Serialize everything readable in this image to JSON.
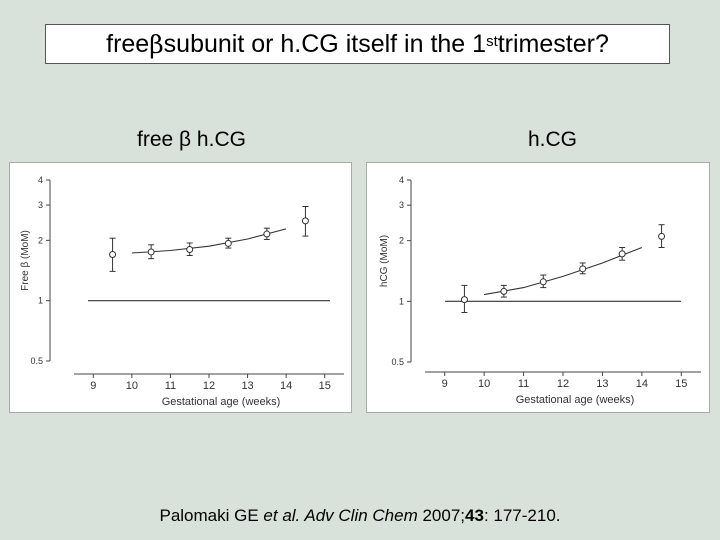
{
  "slide": {
    "title_prefix": "free ",
    "title_beta": "β",
    "title_middle": " subunit or h.CG itself in the 1",
    "title_sup": "st",
    "title_suffix": " trimester?",
    "citation": {
      "authors": "Palomaki GE ",
      "etal": "et al.",
      "journal": " Adv Clin Chem",
      "year": " 2007;",
      "volume": "43",
      "pages": ": 177-210."
    }
  },
  "chart_data": [
    {
      "type": "line",
      "panel_label": "free β h.CG",
      "xlabel": "Gestational age (weeks)",
      "ylabel": "Free β (MoM)",
      "xlim": [
        8.5,
        15.5
      ],
      "ylim": [
        0.5,
        4
      ],
      "y_scale": "log",
      "x_ticks": [
        9,
        10,
        11,
        12,
        13,
        14,
        15
      ],
      "y_ticks": [
        0.5,
        1,
        2,
        3,
        4
      ],
      "reference_line": 1,
      "points": [
        {
          "x": 9.5,
          "y": 1.7,
          "low": 1.4,
          "high": 2.05
        },
        {
          "x": 10.5,
          "y": 1.75,
          "low": 1.62,
          "high": 1.9
        },
        {
          "x": 11.5,
          "y": 1.8,
          "low": 1.68,
          "high": 1.94
        },
        {
          "x": 12.5,
          "y": 1.93,
          "low": 1.83,
          "high": 2.05
        },
        {
          "x": 13.5,
          "y": 2.15,
          "low": 2.02,
          "high": 2.3
        },
        {
          "x": 14.5,
          "y": 2.5,
          "low": 2.1,
          "high": 2.95
        }
      ],
      "trend": [
        [
          10,
          1.73
        ],
        [
          11,
          1.78
        ],
        [
          12,
          1.87
        ],
        [
          13,
          2.03
        ],
        [
          14,
          2.28
        ]
      ]
    },
    {
      "type": "line",
      "panel_label": "h.CG",
      "xlabel": "Gestational age (weeks)",
      "ylabel": "hCG (MoM)",
      "xlim": [
        8.5,
        15.5
      ],
      "ylim": [
        0.5,
        4
      ],
      "y_scale": "log",
      "x_ticks": [
        9,
        10,
        11,
        12,
        13,
        14,
        15
      ],
      "y_ticks": [
        0.5,
        1,
        2,
        3,
        4
      ],
      "reference_line": 1,
      "points": [
        {
          "x": 9.5,
          "y": 1.02,
          "low": 0.88,
          "high": 1.2
        },
        {
          "x": 10.5,
          "y": 1.12,
          "low": 1.05,
          "high": 1.2
        },
        {
          "x": 11.5,
          "y": 1.25,
          "low": 1.17,
          "high": 1.35
        },
        {
          "x": 12.5,
          "y": 1.45,
          "low": 1.37,
          "high": 1.55
        },
        {
          "x": 13.5,
          "y": 1.72,
          "low": 1.6,
          "high": 1.85
        },
        {
          "x": 14.5,
          "y": 2.1,
          "low": 1.85,
          "high": 2.4
        }
      ],
      "trend": [
        [
          10,
          1.08
        ],
        [
          11,
          1.17
        ],
        [
          12,
          1.33
        ],
        [
          13,
          1.55
        ],
        [
          14,
          1.85
        ]
      ]
    }
  ]
}
